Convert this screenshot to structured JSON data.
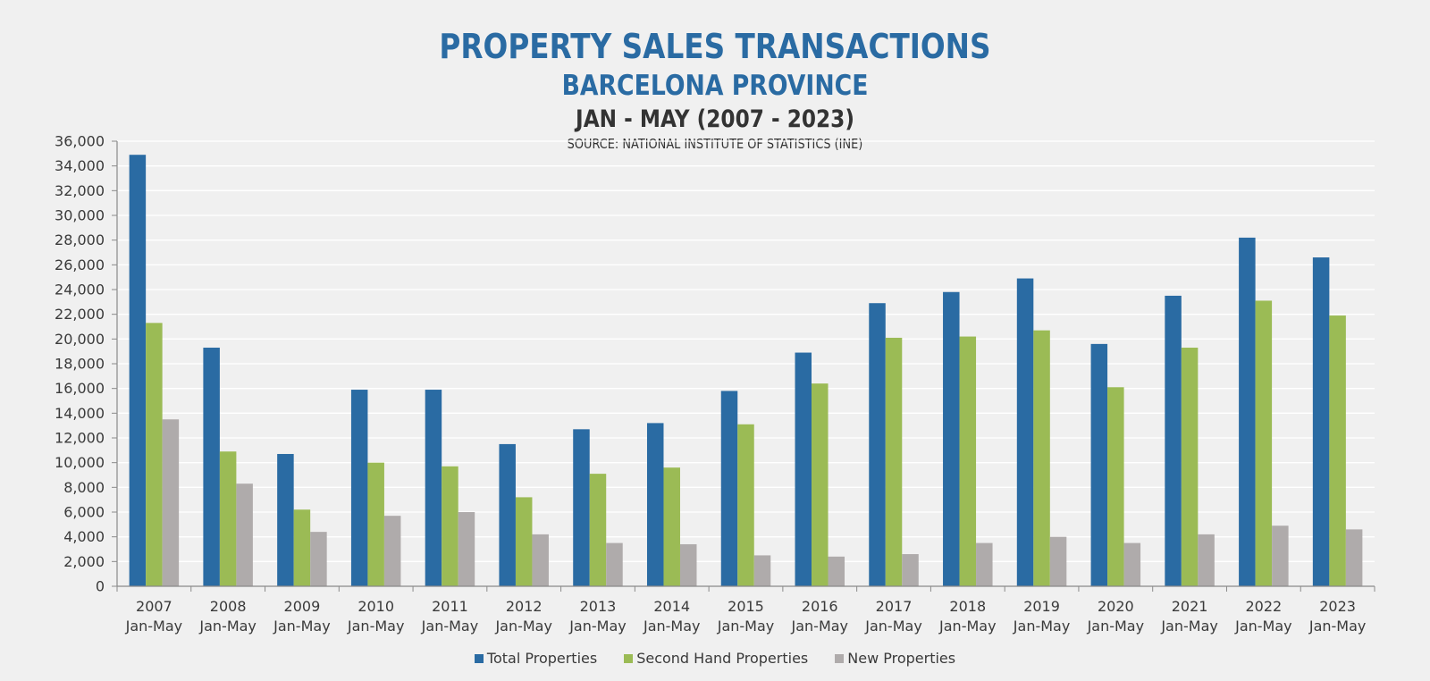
{
  "chart_data": {
    "type": "bar",
    "title": "PROPERTY SALES TRANSACTIONS",
    "subtitle": "BARCELONA PROVINCE",
    "period": "JAN - MAY (2007 - 2023)",
    "source": "SOURCE: NATIONAL INSTITUTE OF STATISTICS (INE)",
    "xlabel": "",
    "ylabel": "",
    "ylim": [
      0,
      36000
    ],
    "yticks": [
      0,
      2000,
      4000,
      6000,
      8000,
      10000,
      12000,
      14000,
      16000,
      18000,
      20000,
      22000,
      24000,
      26000,
      28000,
      30000,
      32000,
      34000,
      36000
    ],
    "ytick_labels": [
      "0",
      "2,000",
      "4,000",
      "6,000",
      "8,000",
      "10,000",
      "12,000",
      "14,000",
      "16,000",
      "18,000",
      "20,000",
      "22,000",
      "24,000",
      "26,000",
      "28,000",
      "30,000",
      "32,000",
      "34,000",
      "36,000"
    ],
    "grid": true,
    "legend_position": "bottom",
    "categories": [
      "2007 Jan-May",
      "2008 Jan-May",
      "2009 Jan-May",
      "2010 Jan-May",
      "2011 Jan-May",
      "2012 Jan-May",
      "2013 Jan-May",
      "2014 Jan-May",
      "2015 Jan-May",
      "2016 Jan-May",
      "2017 Jan-May",
      "2018 Jan-May",
      "2019 Jan-May",
      "2020 Jan-May",
      "2021 Jan-May",
      "2022 Jan-May",
      "2023 Jan-May"
    ],
    "category_years": [
      "2007",
      "2008",
      "2009",
      "2010",
      "2011",
      "2012",
      "2013",
      "2014",
      "2015",
      "2016",
      "2017",
      "2018",
      "2019",
      "2020",
      "2021",
      "2022",
      "2023"
    ],
    "category_period": "Jan-May",
    "series": [
      {
        "name": "Total Properties",
        "color": "#2A6BA3",
        "values": [
          34900,
          19300,
          10700,
          15900,
          15900,
          11500,
          12700,
          13200,
          15800,
          18900,
          22900,
          23800,
          24900,
          19600,
          23500,
          28200,
          26600
        ]
      },
      {
        "name": "Second Hand Properties",
        "color": "#9BBB55",
        "values": [
          21300,
          10900,
          6200,
          10000,
          9700,
          7200,
          9100,
          9600,
          13100,
          16400,
          20100,
          20200,
          20700,
          16100,
          19300,
          23100,
          21900
        ]
      },
      {
        "name": "New Properties",
        "color": "#AFABAB",
        "values": [
          13500,
          8300,
          4400,
          5700,
          6000,
          4200,
          3500,
          3400,
          2500,
          2400,
          2600,
          3500,
          4000,
          3500,
          4200,
          4900,
          4600
        ]
      }
    ]
  }
}
